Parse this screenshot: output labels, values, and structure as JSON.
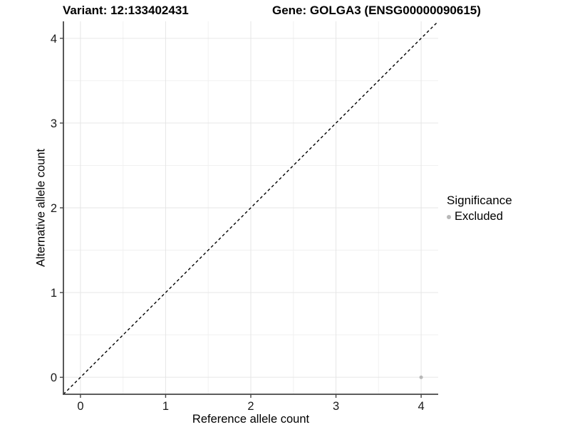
{
  "chart_data": {
    "type": "scatter",
    "title_left": "Variant: 12:133402431",
    "title_right": "Gene: GOLGA3 (ENSG00000090615)",
    "xlabel": "Reference allele count",
    "ylabel": "Alternative allele count",
    "xlim": [
      -0.2,
      4.2
    ],
    "ylim": [
      -0.2,
      4.2
    ],
    "xticks": [
      0,
      1,
      2,
      3,
      4
    ],
    "yticks": [
      0,
      1,
      2,
      3,
      4
    ],
    "minor_step": 0.5,
    "grid": true,
    "points": [
      {
        "x": 4,
        "y": 0,
        "significance": "Excluded"
      }
    ],
    "reference_line": {
      "type": "identity",
      "style": "dashed",
      "from": -0.2,
      "to": 4.2
    },
    "legend": {
      "title": "Significance",
      "position": "right",
      "items": [
        {
          "label": "Excluded",
          "color": "#b8b8b8"
        }
      ]
    },
    "colors": {
      "point_excluded": "#b8b8b8",
      "grid_major": "#e6e6e6",
      "grid_minor": "#f1f1f1",
      "axis_line": "#464646",
      "reference_line": "#000000",
      "tick_text": "#1a1a1a",
      "background": "#ffffff"
    }
  }
}
